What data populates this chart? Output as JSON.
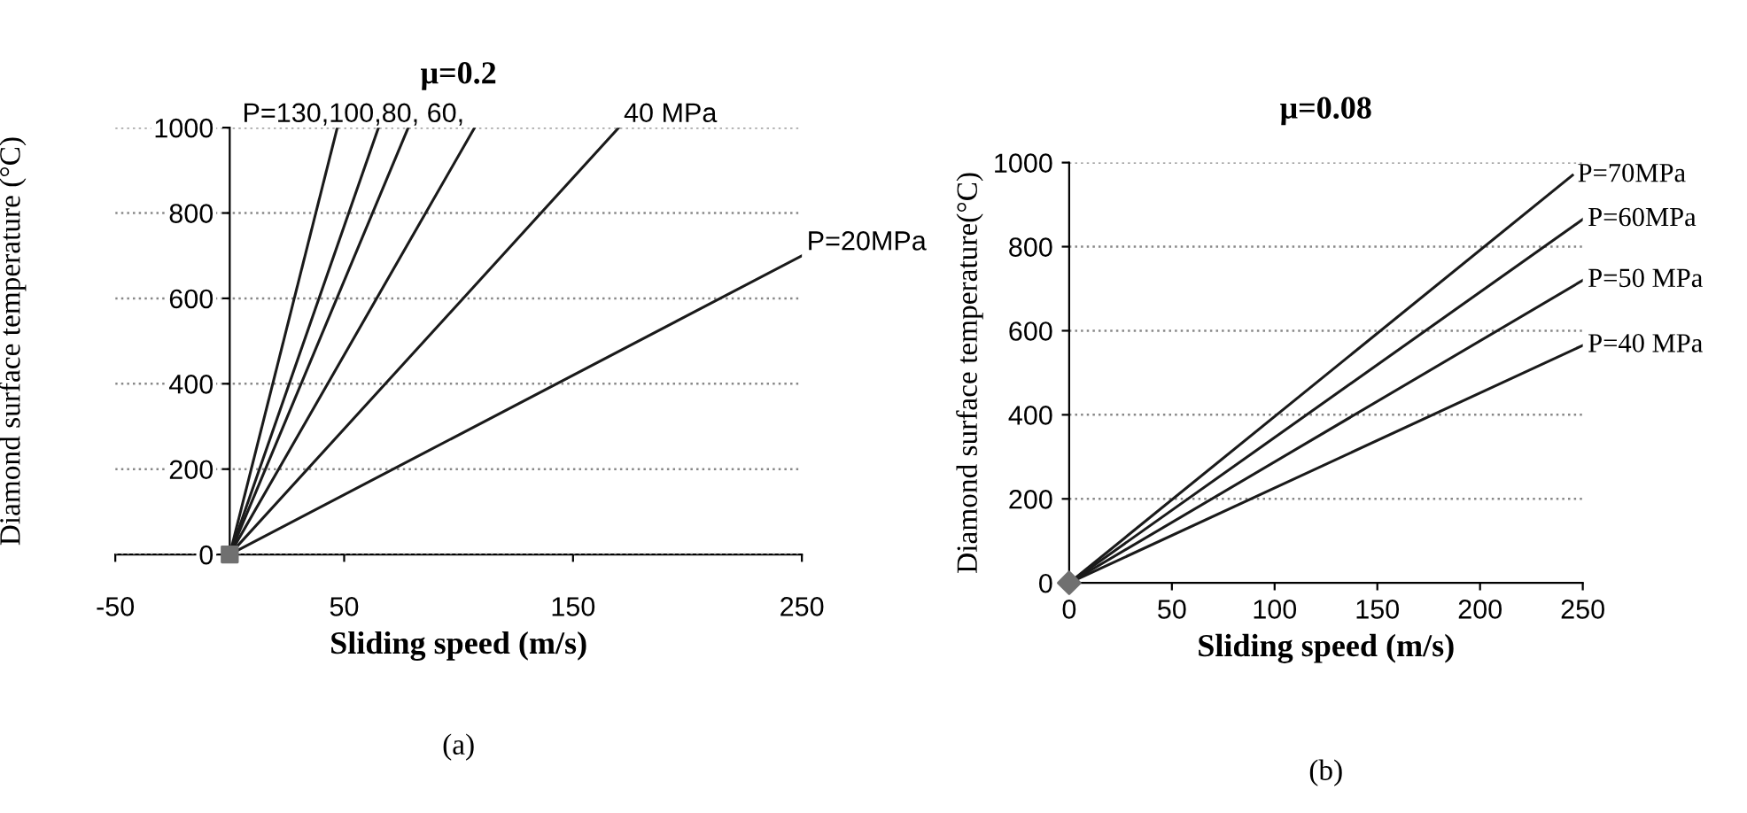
{
  "chart_data": [
    {
      "type": "line",
      "title": "μ=0.2",
      "xlabel": "Sliding speed (m/s)",
      "ylabel": "Diamond surface temperature (°C)",
      "xlim": [
        -50,
        250
      ],
      "xticks": [
        -50,
        50,
        150,
        250
      ],
      "ylim": [
        0,
        1000
      ],
      "yticks": [
        0,
        200,
        400,
        600,
        800,
        1000
      ],
      "grid": "y",
      "legend": false,
      "marker": "none",
      "line_style": "solid",
      "series": [
        {
          "color": "#1a1a1a",
          "x": [
            0,
            47
          ],
          "values": [
            0,
            1000
          ]
        },
        {
          "color": "#1a1a1a",
          "x": [
            0,
            65
          ],
          "values": [
            0,
            1000
          ]
        },
        {
          "color": "#1a1a1a",
          "x": [
            0,
            78
          ],
          "values": [
            0,
            1000
          ]
        },
        {
          "color": "#1a1a1a",
          "x": [
            0,
            107
          ],
          "values": [
            0,
            1000
          ]
        },
        {
          "name": "40 MPa",
          "color": "#1a1a1a",
          "x": [
            0,
            170
          ],
          "values": [
            0,
            1000
          ]
        },
        {
          "name": "P=20MPa",
          "color": "#1a1a1a",
          "x": [
            0,
            250
          ],
          "values": [
            0,
            700
          ]
        },
        {
          "type": "scatter",
          "marker": "square",
          "color": "#707070",
          "x": [
            0
          ],
          "values": [
            0
          ]
        }
      ],
      "annotations": [
        "P=130,100,80, 60,",
        "(a)"
      ]
    },
    {
      "type": "line",
      "title": "μ=0.08",
      "xlabel": "Sliding speed (m/s)",
      "ylabel": "Diamond surface temperature(°C)",
      "xlim": [
        0,
        250
      ],
      "xticks": [
        0,
        50,
        100,
        150,
        200,
        250
      ],
      "ylim": [
        0,
        1000
      ],
      "yticks": [
        0,
        200,
        400,
        600,
        800,
        1000
      ],
      "grid": "y",
      "legend": false,
      "marker": "none",
      "line_style": "solid",
      "series": [
        {
          "name": "P=70MPa",
          "color": "#1a1a1a",
          "x": [
            0,
            245
          ],
          "values": [
            0,
            970
          ]
        },
        {
          "name": "P=60MPa",
          "color": "#1a1a1a",
          "x": [
            0,
            250
          ],
          "values": [
            0,
            865
          ]
        },
        {
          "name": "P=50 MPa",
          "color": "#1a1a1a",
          "x": [
            0,
            250
          ],
          "values": [
            0,
            720
          ]
        },
        {
          "name": "P=40 MPa",
          "color": "#1a1a1a",
          "x": [
            0,
            250
          ],
          "values": [
            0,
            565
          ]
        },
        {
          "type": "scatter",
          "marker": "diamond",
          "color": "#707070",
          "x": [
            0
          ],
          "values": [
            0
          ]
        }
      ],
      "annotations": [
        "(b)"
      ]
    }
  ]
}
